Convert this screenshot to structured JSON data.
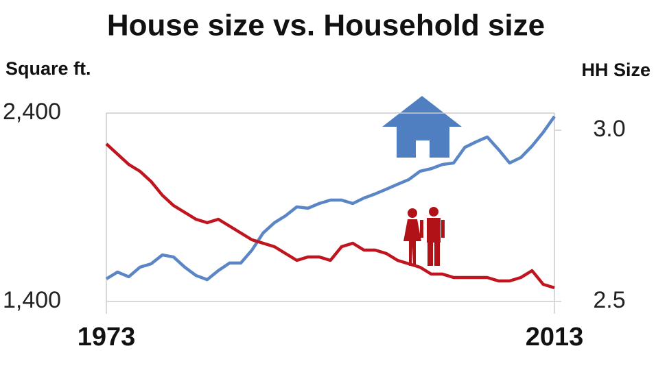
{
  "chart_data": {
    "type": "line",
    "title": "House size vs. Household size",
    "y_label": "Square ft.",
    "y2_label": "HH Size",
    "x": [
      1973,
      1974,
      1975,
      1976,
      1977,
      1978,
      1979,
      1980,
      1981,
      1982,
      1983,
      1984,
      1985,
      1986,
      1987,
      1988,
      1989,
      1990,
      1991,
      1992,
      1993,
      1994,
      1995,
      1996,
      1997,
      1998,
      1999,
      2000,
      2001,
      2002,
      2003,
      2004,
      2005,
      2006,
      2007,
      2008,
      2009,
      2010,
      2011,
      2012,
      2013
    ],
    "xlim": [
      1973,
      2013
    ],
    "xticks": [
      1973,
      2013
    ],
    "ylim": [
      1400,
      2400
    ],
    "yticks": [
      {
        "value": 1400,
        "label": "1,400"
      },
      {
        "value": 2400,
        "label": "2,400"
      }
    ],
    "y2lim": [
      2.5,
      3.05
    ],
    "y2ticks": [
      2.5,
      {
        "value": 3,
        "label": "3.0"
      }
    ],
    "grid": true,
    "series": [
      {
        "color": "#5b86c5",
        "values": [
          1520,
          1556,
          1531,
          1582,
          1600,
          1647,
          1636,
          1582,
          1538,
          1516,
          1564,
          1604,
          1604,
          1673,
          1764,
          1818,
          1855,
          1902,
          1895,
          1920,
          1938,
          1938,
          1920,
          1949,
          1971,
          1996,
          2022,
          2047,
          2091,
          2105,
          2127,
          2135,
          2218,
          2247,
          2273,
          2207,
          2135,
          2164,
          2225,
          2298,
          2382
        ]
      },
      {
        "color": "#c0141e",
        "axis": "y2",
        "values": [
          2.96,
          2.93,
          2.9,
          2.88,
          2.85,
          2.81,
          2.78,
          2.76,
          2.74,
          2.73,
          2.74,
          2.72,
          2.7,
          2.68,
          2.67,
          2.66,
          2.64,
          2.62,
          2.63,
          2.63,
          2.62,
          2.66,
          2.67,
          2.65,
          2.65,
          2.64,
          2.62,
          2.61,
          2.6,
          2.58,
          2.58,
          2.57,
          2.57,
          2.57,
          2.57,
          2.56,
          2.56,
          2.57,
          2.59,
          2.55,
          2.54
        ]
      }
    ]
  }
}
